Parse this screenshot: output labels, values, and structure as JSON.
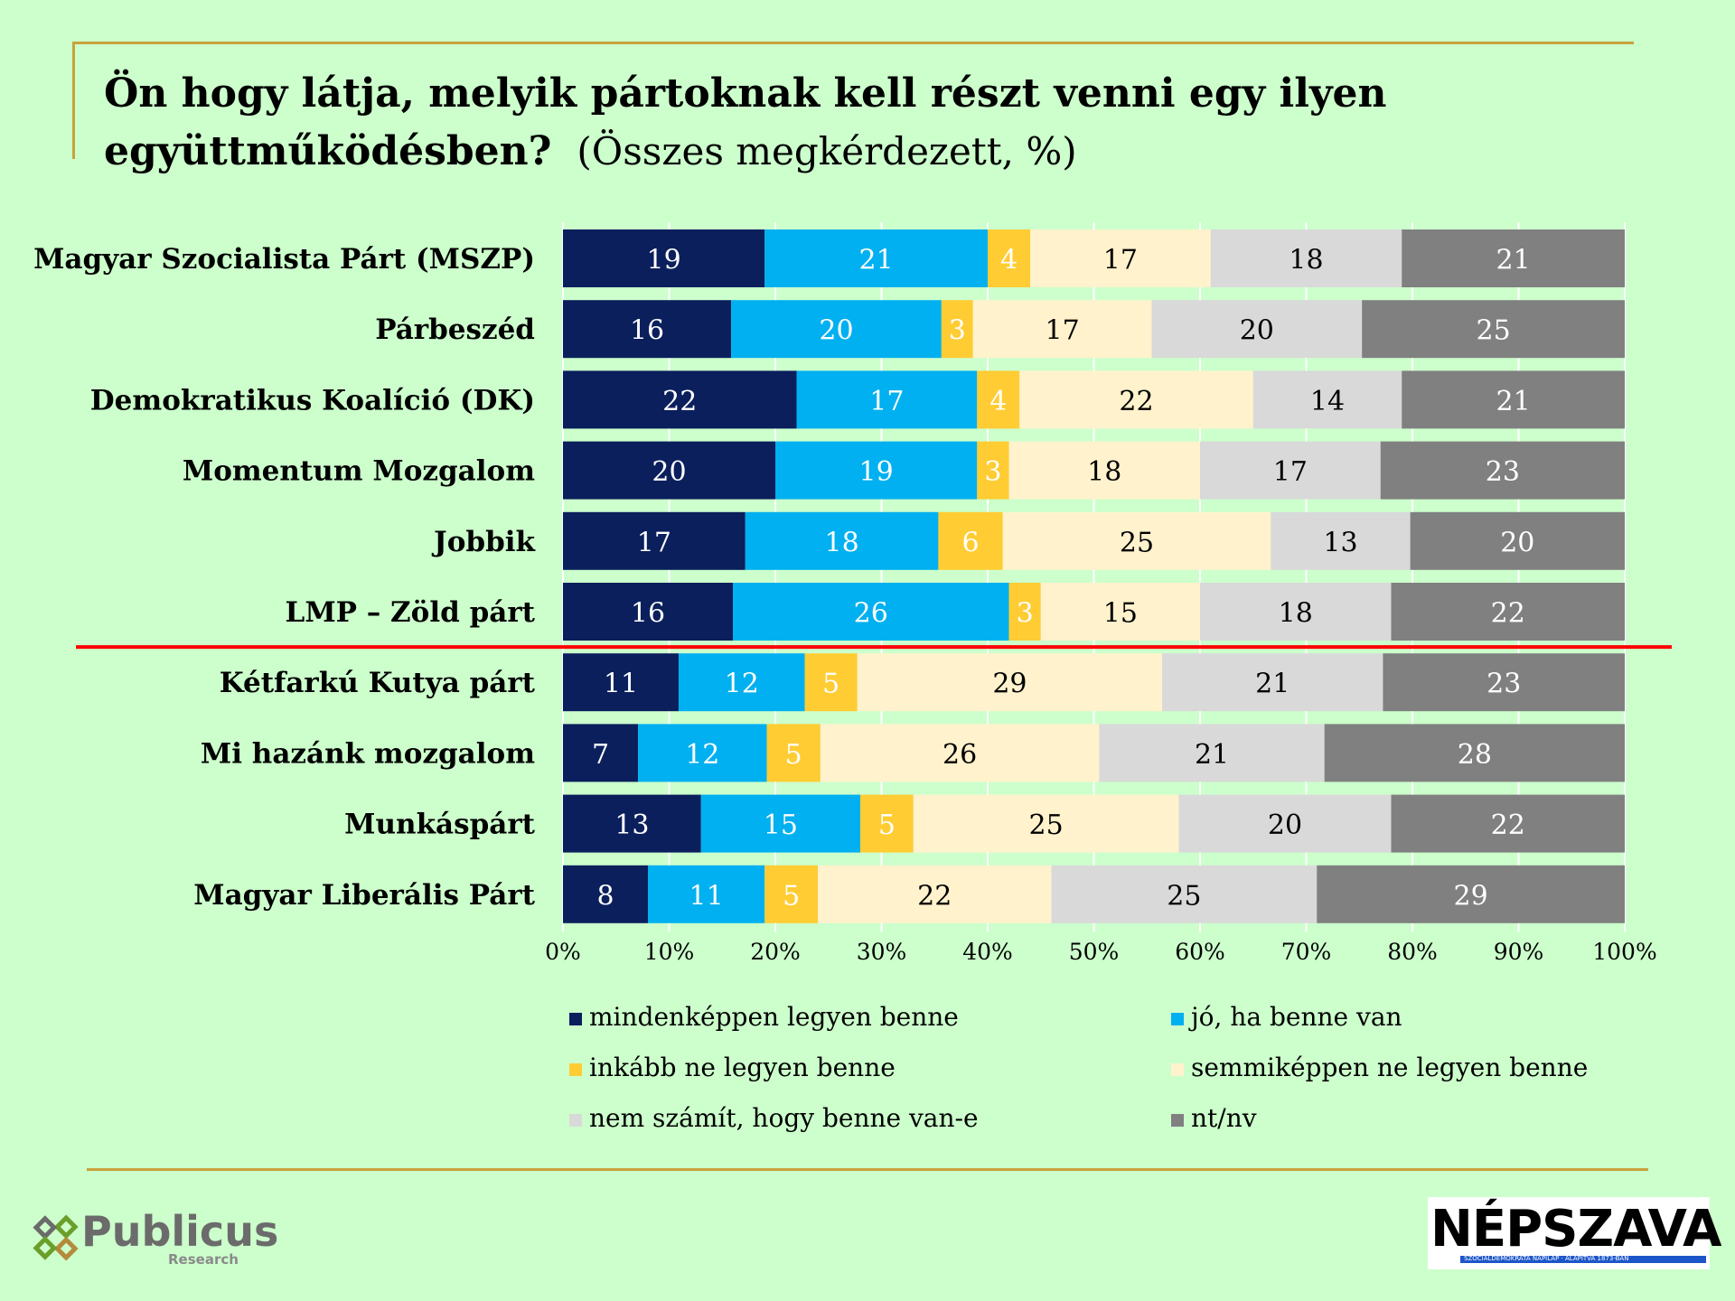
{
  "header": {
    "title": "Ön hogy látja, melyik pártoknak kell részt venni egy ilyen együttműködésben?",
    "subtitle": "(Összes megkérdezett, %)"
  },
  "colors": {
    "frame": "#c8a23a",
    "divider": "#ff0000",
    "background": "#ccffcc"
  },
  "chart_data": {
    "type": "bar",
    "orientation": "horizontal",
    "stacked": true,
    "stacking": "percent",
    "categories": [
      "Magyar Szocialista Párt (MSZP)",
      "Párbeszéd",
      "Demokratikus Koalíció (DK)",
      "Momentum Mozgalom",
      "Jobbik",
      "LMP – Zöld párt",
      "Kétfarkú Kutya párt",
      "Mi hazánk mozgalom",
      "Munkáspárt",
      "Magyar Liberális Párt"
    ],
    "series": [
      {
        "name": "mindenképpen legyen benne",
        "color": "#0a1f5c",
        "text_color": "#ffffff",
        "values": [
          19,
          16,
          22,
          20,
          17,
          16,
          11,
          7,
          13,
          8
        ]
      },
      {
        "name": "jó, ha benne van",
        "color": "#00b0f0",
        "text_color": "#ffffff",
        "values": [
          21,
          20,
          17,
          19,
          18,
          26,
          12,
          12,
          15,
          11
        ]
      },
      {
        "name": "inkább ne legyen benne",
        "color": "#ffcc33",
        "text_color": "#ffffff",
        "values": [
          4,
          3,
          4,
          3,
          6,
          3,
          5,
          5,
          5,
          5
        ]
      },
      {
        "name": "semmiképpen ne legyen benne",
        "color": "#fff2cc",
        "text_color": "#000000",
        "values": [
          17,
          17,
          22,
          18,
          25,
          15,
          29,
          26,
          25,
          22
        ]
      },
      {
        "name": "nem számít, hogy benne van-e",
        "color": "#d9d9d9",
        "text_color": "#000000",
        "values": [
          18,
          20,
          14,
          17,
          13,
          18,
          21,
          21,
          20,
          25
        ]
      },
      {
        "name": "nt/nv",
        "color": "#808080",
        "text_color": "#ffffff",
        "values": [
          21,
          25,
          21,
          23,
          20,
          22,
          23,
          28,
          22,
          29
        ]
      }
    ],
    "xlim": [
      0,
      100
    ],
    "xticks": [
      "0%",
      "10%",
      "20%",
      "30%",
      "40%",
      "50%",
      "60%",
      "70%",
      "80%",
      "90%",
      "100%"
    ],
    "divider_after_index": 5,
    "legend_position": "bottom"
  },
  "branding": {
    "publicus": {
      "name": "Publicus",
      "sub": "Research"
    },
    "nepszava": {
      "name": "NÉPSZAVA",
      "tagline": "SZOCIALDEMOKRATA NAPILAP · ALAPÍTVA 1873-BAN"
    }
  }
}
